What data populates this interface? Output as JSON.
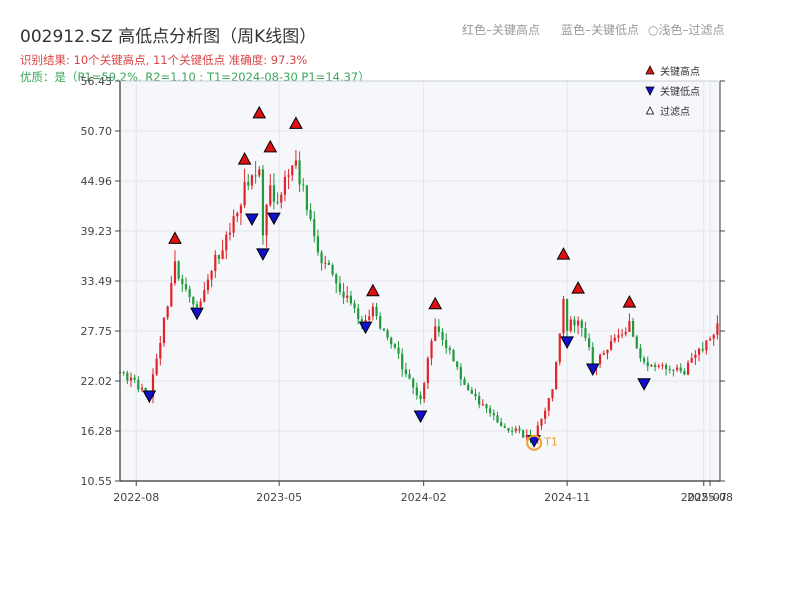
{
  "title": "002912.SZ 高低点分析图（周K线图）",
  "legend_top": {
    "red": "红色–关键高点",
    "blue": "蓝色–关键低点",
    "light_symbol": "○",
    "light": "浅色–过滤点"
  },
  "info": {
    "line1": "识别结果: 10个关键高点, 11个关键低点  准确度: 97.3%",
    "line2": "优质：是（P1=59.2%, R2=1.10 ; T1=2024-08-30 P1=14.37）"
  },
  "colors": {
    "up": "#e0242a",
    "down": "#1f9a3c",
    "high_marker": "#e01010",
    "low_marker": "#1010d0",
    "t1": "#f0a030",
    "plot_bg": "#f6f7fb"
  },
  "chart_data": {
    "type": "candlestick",
    "y_ticks": [
      "56.43",
      "50.70",
      "44.96",
      "39.23",
      "33.49",
      "27.75",
      "22.02",
      "16.28",
      "10.55"
    ],
    "ylim": [
      10.55,
      56.43
    ],
    "x_ticks": [
      "2022-08",
      "2023-05",
      "2024-02",
      "2024-11",
      "2025-07",
      "2025-08"
    ],
    "xlim": [
      "2022-07-01",
      "2025-08-20"
    ],
    "legend": {
      "high": "关键高点",
      "low": "关键低点",
      "filtered": "过滤点"
    },
    "t1_label": "T1",
    "t1": {
      "date": "2024-08-30",
      "price": 14.37
    },
    "key_highs": [
      {
        "date": "2022-10-14",
        "price": 37.8
      },
      {
        "date": "2023-02-24",
        "price": 46.9
      },
      {
        "date": "2023-03-24",
        "price": 52.2
      },
      {
        "date": "2023-04-14",
        "price": 48.3
      },
      {
        "date": "2023-06-02",
        "price": 51.0
      },
      {
        "date": "2023-10-27",
        "price": 31.8
      },
      {
        "date": "2024-02-23",
        "price": 30.3
      },
      {
        "date": "2024-10-25",
        "price": 36.0
      },
      {
        "date": "2024-11-22",
        "price": 32.1
      },
      {
        "date": "2025-02-28",
        "price": 30.5
      }
    ],
    "key_lows": [
      {
        "date": "2022-08-26",
        "price": 19.5
      },
      {
        "date": "2022-11-25",
        "price": 29.0
      },
      {
        "date": "2023-03-10",
        "price": 39.8
      },
      {
        "date": "2023-03-31",
        "price": 35.8
      },
      {
        "date": "2023-04-21",
        "price": 39.9
      },
      {
        "date": "2023-10-13",
        "price": 27.4
      },
      {
        "date": "2024-01-26",
        "price": 17.2
      },
      {
        "date": "2024-08-30",
        "price": 14.37
      },
      {
        "date": "2024-11-01",
        "price": 25.7
      },
      {
        "date": "2024-12-20",
        "price": 22.6
      },
      {
        "date": "2025-03-28",
        "price": 20.9
      }
    ],
    "anchors": [
      {
        "date": "2022-07-01",
        "price": 23.0
      },
      {
        "date": "2022-08-26",
        "price": 20.5
      },
      {
        "date": "2022-10-14",
        "price": 35.0
      },
      {
        "date": "2022-11-25",
        "price": 30.5
      },
      {
        "date": "2023-02-24",
        "price": 44.0
      },
      {
        "date": "2023-03-24",
        "price": 46.0
      },
      {
        "date": "2023-03-31",
        "price": 38.0
      },
      {
        "date": "2023-04-14",
        "price": 45.0
      },
      {
        "date": "2023-04-21",
        "price": 42.0
      },
      {
        "date": "2023-06-02",
        "price": 47.0
      },
      {
        "date": "2023-07-14",
        "price": 37.0
      },
      {
        "date": "2023-09-15",
        "price": 30.5
      },
      {
        "date": "2023-10-13",
        "price": 28.5
      },
      {
        "date": "2023-10-27",
        "price": 30.0
      },
      {
        "date": "2024-01-26",
        "price": 20.0
      },
      {
        "date": "2024-02-23",
        "price": 28.5
      },
      {
        "date": "2024-04-26",
        "price": 21.0
      },
      {
        "date": "2024-06-28",
        "price": 17.0
      },
      {
        "date": "2024-08-30",
        "price": 15.3
      },
      {
        "date": "2024-10-04",
        "price": 21.5
      },
      {
        "date": "2024-10-25",
        "price": 31.0
      },
      {
        "date": "2024-11-01",
        "price": 28.0
      },
      {
        "date": "2024-11-22",
        "price": 29.5
      },
      {
        "date": "2024-12-20",
        "price": 24.0
      },
      {
        "date": "2025-02-28",
        "price": 28.5
      },
      {
        "date": "2025-03-28",
        "price": 24.0
      },
      {
        "date": "2025-06-13",
        "price": 23.0
      },
      {
        "date": "2025-08-15",
        "price": 28.5
      }
    ]
  }
}
